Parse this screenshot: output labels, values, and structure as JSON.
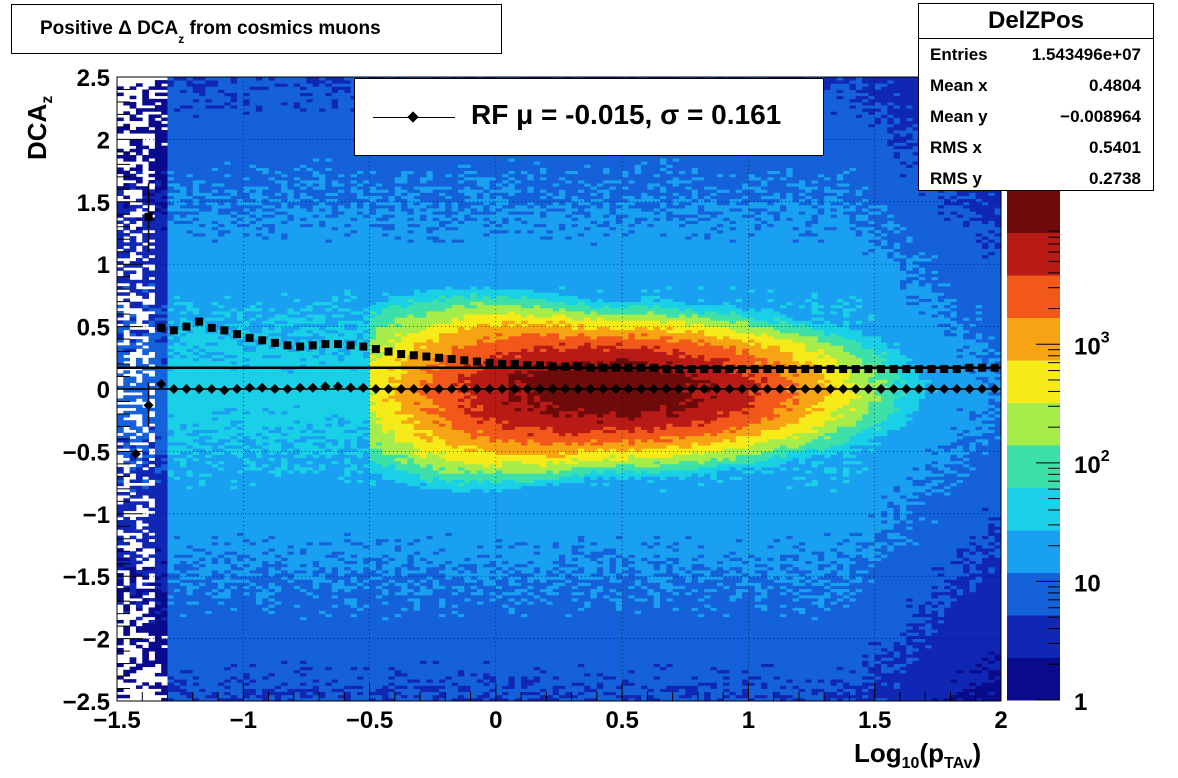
{
  "title": {
    "text_main": "Positive Δ DCA",
    "text_sub": "z",
    "text_tail": " from cosmics muons"
  },
  "legend": {
    "label": "RF μ = -0.015, σ =   0.161"
  },
  "stats": {
    "name": "DelZPos",
    "rows": [
      {
        "key": "Entries",
        "value": "1.543496e+07"
      },
      {
        "key": "Mean x",
        "value": "0.4804"
      },
      {
        "key": "Mean y",
        "value": "−0.008964"
      },
      {
        "key": "RMS x",
        "value": "0.5401"
      },
      {
        "key": "RMS y",
        "value": "0.2738"
      }
    ]
  },
  "axes": {
    "x_title_main": "Log",
    "x_title_sub1": "10",
    "x_title_mid": "(p",
    "x_title_sub2": "TAv",
    "x_title_end": ")",
    "y_title_main": "DCA",
    "y_title_sub": "z"
  },
  "colors": {
    "palette": [
      "#0a0a8c",
      "#1026b4",
      "#1461d9",
      "#1aa0f0",
      "#19d0e6",
      "#3ce0a8",
      "#a6ec4a",
      "#f6ea18",
      "#f6a414",
      "#f2581a",
      "#b81a16",
      "#6e0a0a"
    ]
  },
  "chart_data": {
    "type": "heatmap",
    "xlim": [
      -1.5,
      2
    ],
    "ylim": [
      -2.5,
      2.5
    ],
    "z_scale": "log",
    "z_range": [
      1,
      20000
    ],
    "x_ticks": [
      {
        "v": -1.5,
        "label": "−1.5"
      },
      {
        "v": -1,
        "label": "−1"
      },
      {
        "v": -0.5,
        "label": "−0.5"
      },
      {
        "v": 0,
        "label": "0"
      },
      {
        "v": 0.5,
        "label": "0.5"
      },
      {
        "v": 1,
        "label": "1"
      },
      {
        "v": 1.5,
        "label": "1.5"
      },
      {
        "v": 2,
        "label": "2"
      }
    ],
    "y_ticks": [
      {
        "v": 2.5,
        "label": "2.5"
      },
      {
        "v": 2,
        "label": "2"
      },
      {
        "v": 1.5,
        "label": "1.5"
      },
      {
        "v": 1,
        "label": "1"
      },
      {
        "v": 0.5,
        "label": "0.5"
      },
      {
        "v": 0,
        "label": "0"
      },
      {
        "v": -0.5,
        "label": "−0.5"
      },
      {
        "v": -1,
        "label": "−1"
      },
      {
        "v": -1.5,
        "label": "−1.5"
      },
      {
        "v": -2,
        "label": "−2"
      },
      {
        "v": -2.5,
        "label": "−2.5"
      }
    ],
    "z_ticks": [
      {
        "v": 1,
        "label": "1"
      },
      {
        "v": 10,
        "label": "10"
      },
      {
        "v": 100,
        "label": "10",
        "exp": "2"
      },
      {
        "v": 1000,
        "label": "10",
        "exp": "3"
      }
    ],
    "grid": true,
    "fit_line_y": 0.17,
    "series": [
      {
        "name": "RMS",
        "marker": "square",
        "x": [
          -1.375,
          -1.325,
          -1.275,
          -1.225,
          -1.175,
          -1.125,
          -1.075,
          -1.025,
          -0.975,
          -0.925,
          -0.875,
          -0.825,
          -0.775,
          -0.725,
          -0.675,
          -0.625,
          -0.575,
          -0.525,
          -0.475,
          -0.425,
          -0.375,
          -0.325,
          -0.275,
          -0.225,
          -0.175,
          -0.125,
          -0.075,
          -0.025,
          0.025,
          0.075,
          0.125,
          0.175,
          0.225,
          0.275,
          0.325,
          0.375,
          0.425,
          0.475,
          0.525,
          0.575,
          0.625,
          0.675,
          0.725,
          0.775,
          0.825,
          0.875,
          0.925,
          0.975,
          1.025,
          1.075,
          1.125,
          1.175,
          1.225,
          1.275,
          1.325,
          1.375,
          1.425,
          1.475,
          1.525,
          1.575,
          1.625,
          1.675,
          1.725,
          1.775,
          1.825,
          1.875,
          1.925,
          1.975
        ],
        "y": [
          1.38,
          0.49,
          0.47,
          0.5,
          0.54,
          0.49,
          0.47,
          0.44,
          0.41,
          0.39,
          0.37,
          0.35,
          0.34,
          0.35,
          0.36,
          0.36,
          0.35,
          0.34,
          0.32,
          0.3,
          0.28,
          0.27,
          0.26,
          0.25,
          0.24,
          0.23,
          0.22,
          0.21,
          0.2,
          0.2,
          0.19,
          0.19,
          0.18,
          0.18,
          0.18,
          0.17,
          0.17,
          0.17,
          0.17,
          0.17,
          0.17,
          0.16,
          0.16,
          0.16,
          0.16,
          0.16,
          0.16,
          0.16,
          0.16,
          0.16,
          0.16,
          0.16,
          0.16,
          0.16,
          0.16,
          0.16,
          0.16,
          0.16,
          0.16,
          0.16,
          0.16,
          0.16,
          0.16,
          0.16,
          0.16,
          0.17,
          0.17,
          0.17
        ]
      },
      {
        "name": "Mean",
        "marker": "diamond",
        "x": [
          -1.425,
          -1.375,
          -1.325,
          -1.275,
          -1.225,
          -1.175,
          -1.125,
          -1.075,
          -1.025,
          -0.975,
          -0.925,
          -0.875,
          -0.825,
          -0.775,
          -0.725,
          -0.675,
          -0.625,
          -0.575,
          -0.525,
          -0.475,
          -0.425,
          -0.375,
          -0.325,
          -0.275,
          -0.225,
          -0.175,
          -0.125,
          -0.075,
          -0.025,
          0.025,
          0.075,
          0.125,
          0.175,
          0.225,
          0.275,
          0.325,
          0.375,
          0.425,
          0.475,
          0.525,
          0.575,
          0.625,
          0.675,
          0.725,
          0.775,
          0.825,
          0.875,
          0.925,
          0.975,
          1.025,
          1.075,
          1.125,
          1.175,
          1.225,
          1.275,
          1.325,
          1.375,
          1.425,
          1.475,
          1.525,
          1.575,
          1.625,
          1.675,
          1.725,
          1.775,
          1.825,
          1.875,
          1.925,
          1.975
        ],
        "y": [
          -0.52,
          -0.13,
          0.04,
          0.0,
          0.0,
          0.0,
          0.0,
          -0.01,
          0.0,
          0.01,
          0.01,
          0.0,
          0.0,
          0.01,
          0.01,
          0.02,
          0.02,
          0.01,
          0.01,
          0.0,
          0.0,
          0.0,
          0.0,
          0.0,
          0.0,
          0.0,
          0.0,
          0.0,
          0.0,
          0.0,
          0.0,
          0.0,
          0.0,
          0.0,
          0.0,
          0.0,
          0.0,
          0.0,
          0.0,
          0.0,
          0.0,
          0.0,
          0.0,
          0.0,
          0.0,
          0.0,
          0.0,
          0.0,
          0.0,
          0.0,
          0.0,
          0.0,
          0.0,
          0.0,
          0.0,
          0.0,
          0.0,
          0.0,
          0.0,
          0.0,
          0.0,
          0.0,
          0.0,
          0.0,
          0.0,
          0.0,
          0.0,
          0.0,
          0.0
        ]
      }
    ]
  }
}
